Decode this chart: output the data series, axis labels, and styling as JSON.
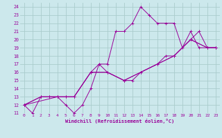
{
  "xlabel": "Windchill (Refroidissement éolien,°C)",
  "bg_color": "#cce8ec",
  "grid_color": "#aacccc",
  "line_color": "#990099",
  "xlim": [
    -0.5,
    23.5
  ],
  "ylim": [
    11,
    24.5
  ],
  "xticks": [
    0,
    1,
    2,
    3,
    4,
    5,
    6,
    7,
    8,
    9,
    10,
    11,
    12,
    13,
    14,
    15,
    16,
    17,
    18,
    19,
    20,
    21,
    22,
    23
  ],
  "yticks": [
    11,
    12,
    13,
    14,
    15,
    16,
    17,
    18,
    19,
    20,
    21,
    22,
    23,
    24
  ],
  "series": [
    {
      "x": [
        0,
        1,
        2,
        3,
        4,
        5,
        6,
        7,
        8,
        9,
        10,
        11,
        12,
        13,
        14,
        15,
        16,
        17,
        18,
        19,
        20,
        21,
        22,
        23
      ],
      "y": [
        12,
        11,
        13,
        13,
        13,
        12,
        11,
        12,
        14,
        17,
        17,
        21,
        21,
        22,
        24,
        23,
        22,
        22,
        22,
        19,
        21,
        19,
        19,
        19
      ]
    },
    {
      "x": [
        0,
        2,
        3,
        4,
        5,
        6,
        8,
        9,
        10,
        12,
        13,
        14,
        16,
        17,
        18,
        20,
        21,
        22,
        23
      ],
      "y": [
        12,
        13,
        13,
        13,
        13,
        13,
        16,
        17,
        16,
        15,
        15,
        16,
        17,
        18,
        18,
        20,
        21,
        19,
        19
      ]
    },
    {
      "x": [
        0,
        2,
        3,
        4,
        5,
        6,
        8,
        10,
        12,
        14,
        16,
        18,
        20,
        22,
        23
      ],
      "y": [
        12,
        13,
        13,
        13,
        13,
        13,
        16,
        16,
        15,
        16,
        17,
        18,
        20,
        19,
        19
      ]
    },
    {
      "x": [
        0,
        4,
        6,
        8,
        10,
        12,
        14,
        16,
        18,
        20,
        22,
        23
      ],
      "y": [
        12,
        13,
        13,
        16,
        16,
        15,
        16,
        17,
        18,
        20,
        19,
        19
      ]
    }
  ]
}
